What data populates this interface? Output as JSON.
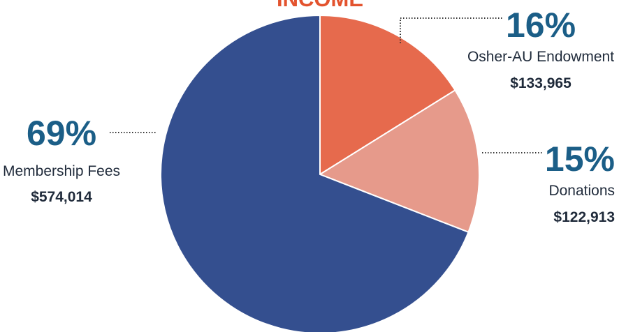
{
  "chart_data": {
    "type": "pie",
    "title": "INCOME",
    "slices": [
      {
        "label": "Osher-AU Endowment",
        "percent_label": "16%",
        "amount": "$133,965",
        "value": 133965,
        "color": "#e66a4d"
      },
      {
        "label": "Donations",
        "percent_label": "15%",
        "amount": "$122,913",
        "value": 122913,
        "color": "#e69a8b"
      },
      {
        "label": "Membership Fees",
        "percent_label": "69%",
        "amount": "$574,014",
        "value": 574014,
        "color": "#344f8f"
      }
    ]
  },
  "colors": {
    "title": "#e3532e",
    "percent": "#1b5e87",
    "label": "#1f2a3a",
    "amount": "#1f2a3a",
    "separator": "#ffffff",
    "leader": "#333333"
  }
}
